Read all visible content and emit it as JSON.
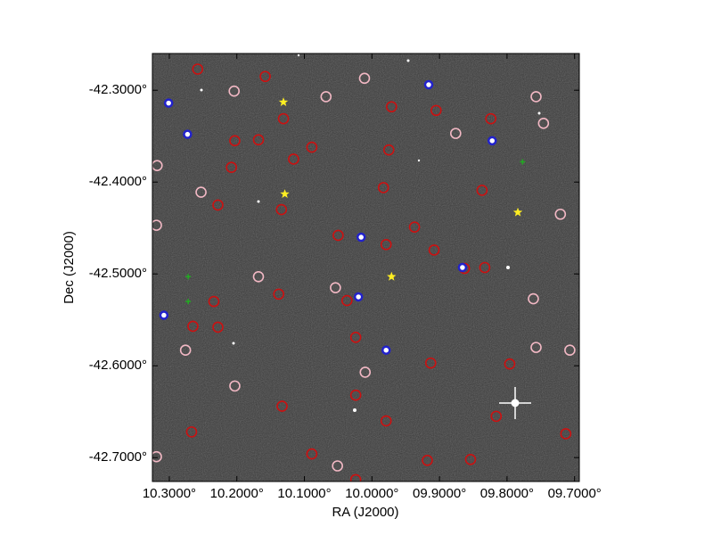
{
  "chart_data": {
    "type": "scatter",
    "xlabel": "RA (J2000)",
    "ylabel": "Dec (J2000)",
    "xlim": [
      10.325,
      9.693
    ],
    "ylim": [
      -42.726,
      -42.26
    ],
    "xticks": [
      {
        "value": 10.3,
        "label": "10.3000°"
      },
      {
        "value": 10.2,
        "label": "10.2000°"
      },
      {
        "value": 10.1,
        "label": "10.1000°"
      },
      {
        "value": 10.0,
        "label": "10.0000°"
      },
      {
        "value": 9.9,
        "label": "09.9000°"
      },
      {
        "value": 9.8,
        "label": "09.8000°"
      },
      {
        "value": 9.7,
        "label": "09.7000°"
      }
    ],
    "yticks": [
      {
        "value": -42.3,
        "label": "-42.3000°"
      },
      {
        "value": -42.4,
        "label": "-42.4000°"
      },
      {
        "value": -42.5,
        "label": "-42.5000°"
      },
      {
        "value": -42.6,
        "label": "-42.6000°"
      },
      {
        "value": -42.7,
        "label": "-42.7000°"
      }
    ],
    "series": [
      {
        "color": "#cc1111",
        "marker": "circle",
        "x": [
          10.258,
          10.158,
          10.131,
          10.203,
          10.168,
          10.116,
          10.208,
          10.089,
          9.971,
          9.905,
          9.824,
          9.975,
          9.837,
          9.983,
          10.228,
          10.134,
          10.05,
          9.979,
          9.937,
          9.908,
          9.863,
          9.833,
          10.037,
          10.138,
          10.234,
          10.265,
          10.228,
          10.024,
          9.913,
          9.796,
          10.267,
          10.133,
          10.024,
          9.979,
          9.816,
          9.713,
          10.089,
          9.918,
          9.854,
          10.024
        ],
        "values": [
          -42.277,
          -42.285,
          -42.331,
          -42.355,
          -42.354,
          -42.375,
          -42.384,
          -42.362,
          -42.318,
          -42.322,
          -42.331,
          -42.365,
          -42.409,
          -42.406,
          -42.425,
          -42.43,
          -42.458,
          -42.468,
          -42.449,
          -42.474,
          -42.494,
          -42.493,
          -42.529,
          -42.522,
          -42.53,
          -42.557,
          -42.558,
          -42.569,
          -42.597,
          -42.598,
          -42.672,
          -42.644,
          -42.632,
          -42.66,
          -42.655,
          -42.674,
          -42.696,
          -42.703,
          -42.702,
          -42.724
        ]
      },
      {
        "color": "#f2b8c4",
        "marker": "circle",
        "x": [
          10.204,
          10.068,
          10.011,
          9.757,
          9.746,
          9.876,
          10.318,
          10.253,
          9.721,
          10.319,
          10.168,
          10.054,
          9.761,
          10.276,
          10.01,
          9.757,
          10.203,
          10.319,
          10.051,
          9.707
        ],
        "values": [
          -42.301,
          -42.307,
          -42.287,
          -42.307,
          -42.336,
          -42.347,
          -42.382,
          -42.411,
          -42.435,
          -42.447,
          -42.503,
          -42.515,
          -42.527,
          -42.583,
          -42.607,
          -42.58,
          -42.622,
          -42.699,
          -42.709,
          -42.583
        ]
      },
      {
        "color": "#2222cc",
        "marker": "dot",
        "x": [
          10.301,
          10.273,
          9.916,
          9.822,
          10.016,
          9.866,
          10.02,
          9.979,
          10.308
        ],
        "values": [
          -42.314,
          -42.348,
          -42.294,
          -42.355,
          -42.46,
          -42.493,
          -42.525,
          -42.583,
          -42.545
        ]
      },
      {
        "color": "#ffee22",
        "marker": "star",
        "x": [
          10.131,
          10.129,
          9.971,
          9.784
        ],
        "values": [
          -42.313,
          -42.413,
          -42.503,
          -42.433
        ]
      },
      {
        "color": "#22aa22",
        "marker": "plus",
        "x": [
          10.272,
          10.272,
          9.777
        ],
        "values": [
          -42.503,
          -42.53,
          -42.378
        ]
      }
    ]
  }
}
